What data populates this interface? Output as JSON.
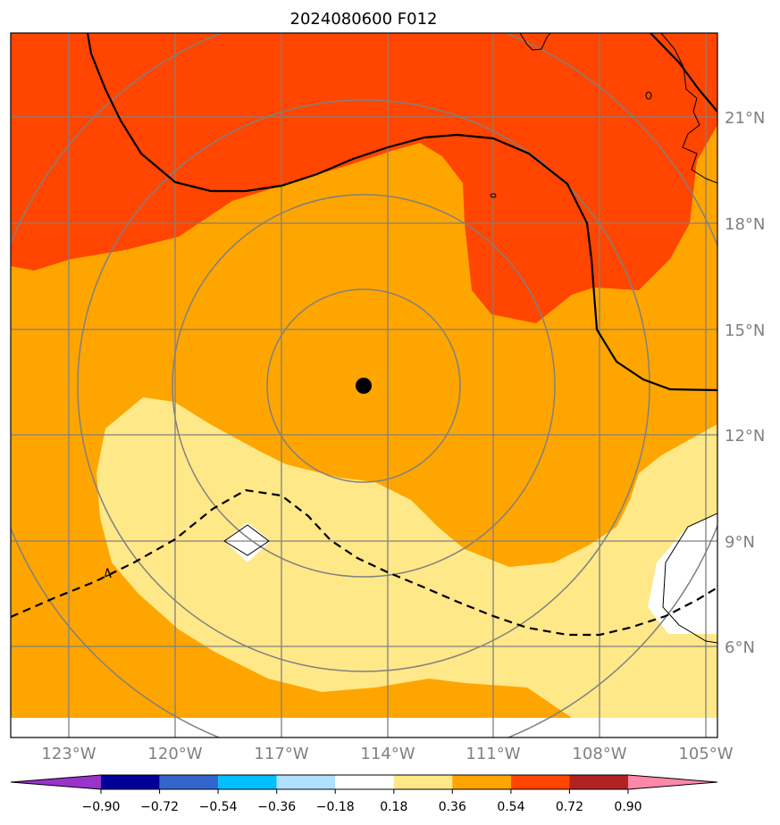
{
  "title": "2024080600 F012",
  "map": {
    "longitude_labels": [
      "123°W",
      "120°W",
      "117°W",
      "114°W",
      "111°W",
      "108°W",
      "105°W"
    ],
    "latitude_labels": [
      "21°N",
      "18°N",
      "15°N",
      "12°N",
      "9°N",
      "6°N"
    ],
    "contour_label": "4",
    "storm_center": {
      "lon": "114.7°W",
      "lat": "13.4°N"
    }
  },
  "colorbar": {
    "ticks": [
      "−0.90",
      "−0.72",
      "−0.54",
      "−0.36",
      "−0.18",
      "0.18",
      "0.36",
      "0.54",
      "0.72",
      "0.90"
    ],
    "colors": {
      "under": "#9933cc",
      "bins": [
        "#000099",
        "#3366cc",
        "#00bfff",
        "#b0e0ff",
        "#ffffff",
        "#ffe888",
        "#ffa500",
        "#ff4500",
        "#b22222"
      ],
      "over": "#ff88aa"
    }
  },
  "colors": {
    "band_low": "#ffe888",
    "band_mid": "#ffa500",
    "band_high": "#ff4500",
    "neutral": "#ffffff",
    "grid": "#808080",
    "contour": "#000000"
  }
}
